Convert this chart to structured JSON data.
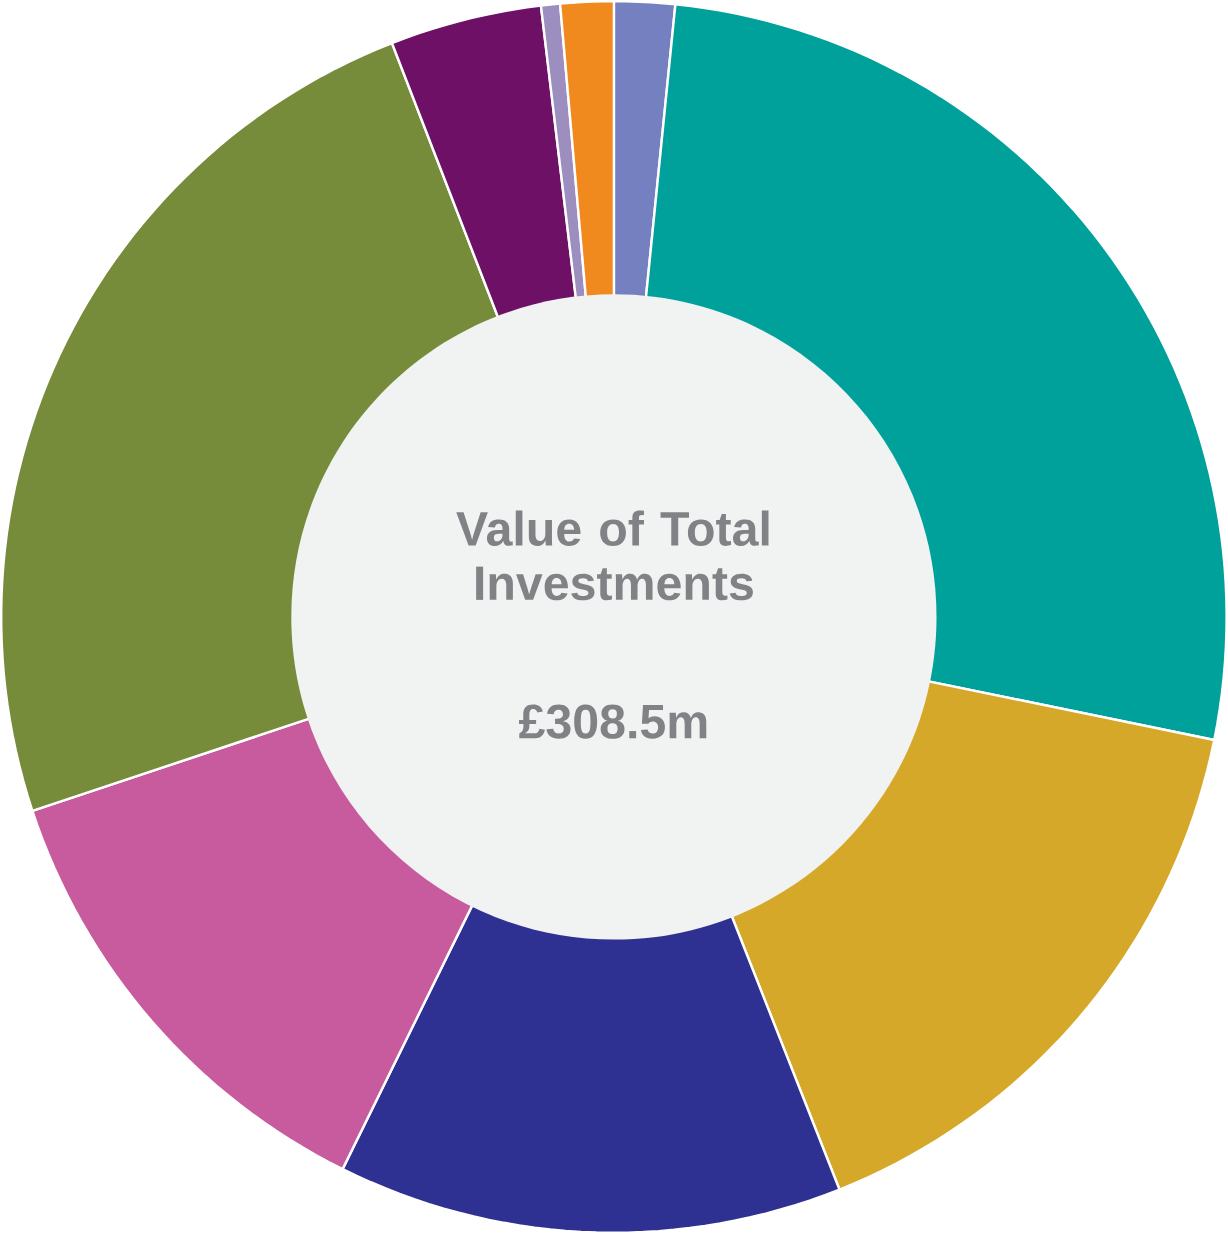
{
  "chart_data": {
    "type": "donut",
    "title": "Value of Total Investments",
    "subtitle": "£308.5m",
    "categories": [
      null,
      null,
      null,
      null,
      null,
      null,
      null,
      null,
      null
    ],
    "values": [
      1.6,
      26.6,
      15.8,
      13.3,
      12.6,
      24.2,
      4.0,
      0.5,
      1.4
    ],
    "colors": [
      "#7580c0",
      "#00a19a",
      "#d6a82a",
      "#2e3192",
      "#c85a9e",
      "#768c3a",
      "#6e1066",
      "#9c8fbf",
      "#f08a1f"
    ]
  }
}
